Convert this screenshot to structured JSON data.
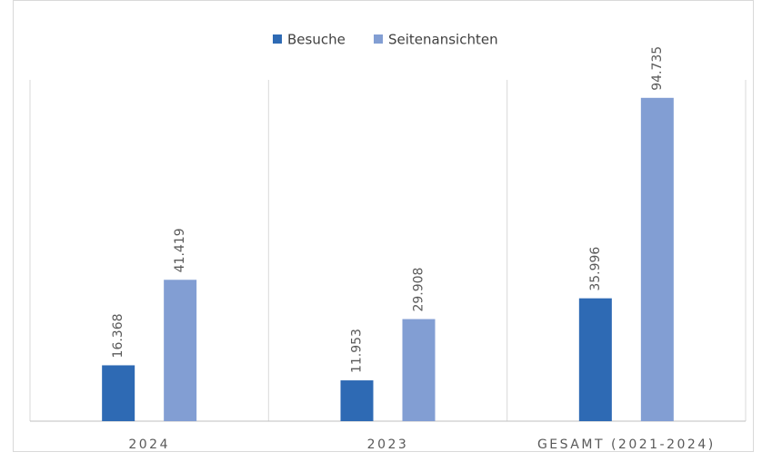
{
  "chart_data": {
    "type": "bar",
    "categories": [
      "2024",
      "2023",
      "GESAMT (2021-2024)"
    ],
    "series": [
      {
        "name": "Besuche",
        "color": "#2e6ab4",
        "values": [
          16368,
          11953,
          35996
        ],
        "value_labels": [
          "16.368",
          "11.953",
          "35.996"
        ]
      },
      {
        "name": "Seitenansichten",
        "color": "#829ed3",
        "values": [
          41419,
          29908,
          94735
        ],
        "value_labels": [
          "41.419",
          "29.908",
          "94.735"
        ]
      }
    ],
    "ylim": [
      0,
      100000
    ],
    "legend": "top"
  }
}
